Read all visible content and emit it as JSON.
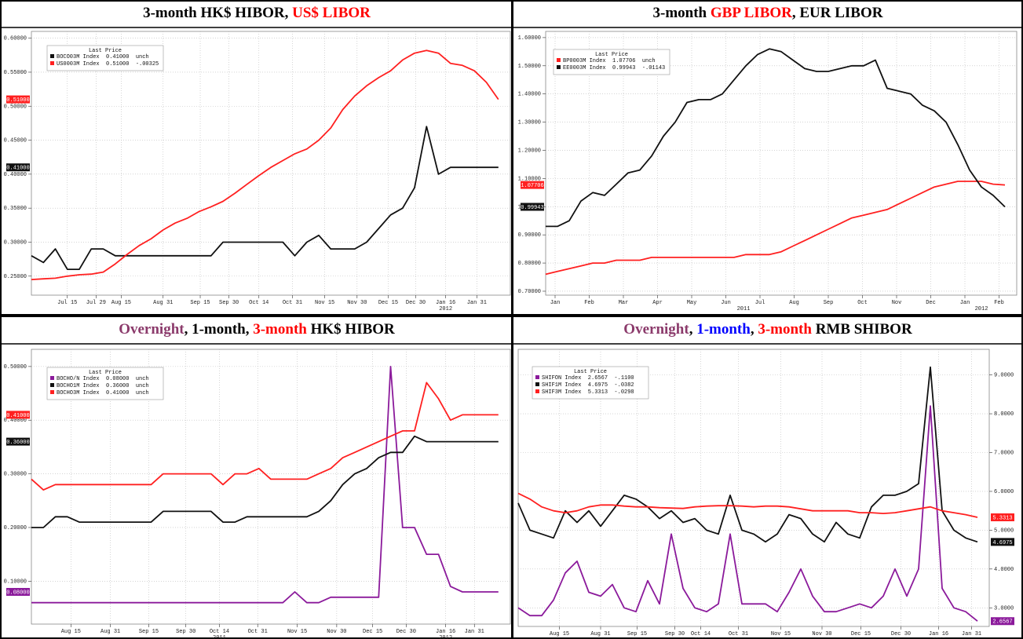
{
  "chart_data": [
    {
      "type": "line",
      "title": [
        {
          "text": "3-month HK$ HIBOR, ",
          "color": "#000000"
        },
        {
          "text": "US$ LIBOR",
          "color": "#ff0000"
        }
      ],
      "legend_title": "Last Price",
      "xlim": [
        0,
        40
      ],
      "ylim": [
        0.222,
        0.61
      ],
      "y_axis_side": "left",
      "grid": true,
      "xticks": [
        {
          "value": 3.0,
          "label": "Jul 15"
        },
        {
          "value": 5.4,
          "label": "Jul 29"
        },
        {
          "value": 7.5,
          "label": "Aug 15"
        },
        {
          "value": 11,
          "label": "Aug 31"
        },
        {
          "value": 14.1,
          "label": "Sep 15"
        },
        {
          "value": 16.5,
          "label": "Sep 30"
        },
        {
          "value": 19,
          "label": "Oct 14"
        },
        {
          "value": 21.8,
          "label": "Oct 31"
        },
        {
          "value": 24.5,
          "label": "Nov 15"
        },
        {
          "value": 27.2,
          "label": "Nov 30"
        },
        {
          "value": 29.8,
          "label": "Dec 15"
        },
        {
          "value": 32.1,
          "label": "Dec 30"
        },
        {
          "value": 34.6,
          "label": "Jan 16"
        },
        {
          "value": 37.2,
          "label": "Jan 31"
        }
      ],
      "year_ticks": [
        {
          "value": 34.6,
          "label": "2012"
        }
      ],
      "yticks": [
        {
          "value": 0.25,
          "label": "0.25000"
        },
        {
          "value": 0.3,
          "label": "0.30000"
        },
        {
          "value": 0.35,
          "label": "0.35000"
        },
        {
          "value": 0.4,
          "label": "0.40000"
        },
        {
          "value": 0.45,
          "label": "0.45000"
        },
        {
          "value": 0.5,
          "label": "0.50000"
        },
        {
          "value": 0.55,
          "label": "0.55000"
        },
        {
          "value": 0.6,
          "label": "0.60000"
        }
      ],
      "series": [
        {
          "name": "BOCO03M Index  0.41000  unch",
          "color": "#111111",
          "last_label": "0.41000",
          "values": [
            0.28,
            0.27,
            0.29,
            0.26,
            0.26,
            0.29,
            0.29,
            0.28,
            0.28,
            0.28,
            0.28,
            0.28,
            0.28,
            0.28,
            0.28,
            0.28,
            0.3,
            0.3,
            0.3,
            0.3,
            0.3,
            0.3,
            0.28,
            0.3,
            0.31,
            0.29,
            0.29,
            0.29,
            0.3,
            0.32,
            0.34,
            0.35,
            0.38,
            0.47,
            0.4,
            0.41,
            0.41,
            0.41,
            0.41,
            0.41
          ]
        },
        {
          "name": "US0003M Index  0.51000  -.00325",
          "color": "#ff2020",
          "last_label": "0.51000",
          "values": [
            0.245,
            0.246,
            0.247,
            0.25,
            0.252,
            0.253,
            0.256,
            0.268,
            0.282,
            0.295,
            0.305,
            0.318,
            0.328,
            0.335,
            0.345,
            0.352,
            0.36,
            0.372,
            0.385,
            0.398,
            0.41,
            0.42,
            0.43,
            0.437,
            0.45,
            0.468,
            0.495,
            0.515,
            0.53,
            0.542,
            0.552,
            0.568,
            0.578,
            0.582,
            0.578,
            0.563,
            0.56,
            0.552,
            0.535,
            0.51
          ]
        }
      ]
    },
    {
      "type": "line",
      "title": [
        {
          "text": "3-month ",
          "color": "#000000"
        },
        {
          "text": "GBP LIBOR",
          "color": "#ff0000"
        },
        {
          "text": ", EUR LIBOR",
          "color": "#000000"
        }
      ],
      "legend_title": "Last Price",
      "xlim": [
        0,
        40
      ],
      "ylim": [
        0.686,
        1.622
      ],
      "y_axis_side": "left",
      "grid": true,
      "xticks": [
        {
          "value": 0.8,
          "label": "Jan"
        },
        {
          "value": 3.7,
          "label": "Feb"
        },
        {
          "value": 6.6,
          "label": "Mar"
        },
        {
          "value": 9.5,
          "label": "Apr"
        },
        {
          "value": 12.4,
          "label": "May"
        },
        {
          "value": 15.3,
          "label": "Jun"
        },
        {
          "value": 18.2,
          "label": "Jul"
        },
        {
          "value": 21.1,
          "label": "Aug"
        },
        {
          "value": 24,
          "label": "Sep"
        },
        {
          "value": 26.9,
          "label": "Oct"
        },
        {
          "value": 29.8,
          "label": "Nov"
        },
        {
          "value": 32.7,
          "label": "Dec"
        },
        {
          "value": 35.6,
          "label": "Jan"
        },
        {
          "value": 38.5,
          "label": "Feb"
        }
      ],
      "year_ticks": [
        {
          "value": 16.8,
          "label": "2011"
        },
        {
          "value": 37,
          "label": "2012"
        }
      ],
      "yticks": [
        {
          "value": 0.7,
          "label": "0.70000"
        },
        {
          "value": 0.8,
          "label": "0.80000"
        },
        {
          "value": 0.9,
          "label": "0.90000"
        },
        {
          "value": 1.0,
          "label": "1.00000"
        },
        {
          "value": 1.1,
          "label": "1.10000"
        },
        {
          "value": 1.2,
          "label": "1.20000"
        },
        {
          "value": 1.3,
          "label": "1.30000"
        },
        {
          "value": 1.4,
          "label": "1.40000"
        },
        {
          "value": 1.5,
          "label": "1.50000"
        },
        {
          "value": 1.6,
          "label": "1.60000"
        }
      ],
      "series": [
        {
          "name": "BP0003M Index  1.07706  unch",
          "color": "#ff2020",
          "last_label": "1.07706",
          "values": [
            0.76,
            0.77,
            0.78,
            0.79,
            0.8,
            0.8,
            0.81,
            0.81,
            0.81,
            0.82,
            0.82,
            0.82,
            0.82,
            0.82,
            0.82,
            0.82,
            0.82,
            0.83,
            0.83,
            0.83,
            0.84,
            0.86,
            0.88,
            0.9,
            0.92,
            0.94,
            0.96,
            0.97,
            0.98,
            0.99,
            1.01,
            1.03,
            1.05,
            1.07,
            1.08,
            1.09,
            1.09,
            1.09,
            1.08,
            1.07706
          ]
        },
        {
          "name": "EE0003M Index  0.99943  -.01143",
          "color": "#111111",
          "last_label": "0.99943",
          "values": [
            0.93,
            0.93,
            0.95,
            1.02,
            1.05,
            1.04,
            1.08,
            1.12,
            1.13,
            1.18,
            1.25,
            1.3,
            1.37,
            1.38,
            1.38,
            1.4,
            1.45,
            1.5,
            1.54,
            1.56,
            1.55,
            1.52,
            1.49,
            1.48,
            1.48,
            1.49,
            1.5,
            1.5,
            1.52,
            1.42,
            1.41,
            1.4,
            1.36,
            1.34,
            1.3,
            1.22,
            1.13,
            1.07,
            1.04,
            0.99943
          ]
        }
      ]
    },
    {
      "type": "line",
      "title": [
        {
          "text": "Overnight",
          "color": "#8b3a6b"
        },
        {
          "text": ", 1-month, ",
          "color": "#000000"
        },
        {
          "text": "3-month",
          "color": "#ff0000"
        },
        {
          "text": " HK$ HIBOR",
          "color": "#000000"
        }
      ],
      "legend_title": "Last Price",
      "xlim": [
        0,
        40
      ],
      "ylim": [
        0.02,
        0.532
      ],
      "y_axis_side": "left",
      "grid": true,
      "xticks": [
        {
          "value": 3.3,
          "label": "Aug 15"
        },
        {
          "value": 6.6,
          "label": "Aug 31"
        },
        {
          "value": 9.8,
          "label": "Sep 15"
        },
        {
          "value": 12.9,
          "label": "Sep 30"
        },
        {
          "value": 15.7,
          "label": "Oct 14"
        },
        {
          "value": 18.9,
          "label": "Oct 31"
        },
        {
          "value": 22.2,
          "label": "Nov 15"
        },
        {
          "value": 25.5,
          "label": "Nov 30"
        },
        {
          "value": 28.5,
          "label": "Dec 15"
        },
        {
          "value": 31.3,
          "label": "Dec 30"
        },
        {
          "value": 34.6,
          "label": "Jan 16"
        },
        {
          "value": 37,
          "label": "Jan 31"
        }
      ],
      "year_ticks": [
        {
          "value": 15.7,
          "label": "2011"
        },
        {
          "value": 34.6,
          "label": "2012"
        }
      ],
      "yticks": [
        {
          "value": 0.1,
          "label": "0.10000"
        },
        {
          "value": 0.2,
          "label": "0.20000"
        },
        {
          "value": 0.3,
          "label": "0.30000"
        },
        {
          "value": 0.4,
          "label": "0.40000"
        },
        {
          "value": 0.5,
          "label": "0.50000"
        }
      ],
      "series": [
        {
          "name": "BOCHO/N Index  0.08000  unch",
          "color": "#8b1a9b",
          "last_label": "0.08000",
          "values": [
            0.06,
            0.06,
            0.06,
            0.06,
            0.06,
            0.06,
            0.06,
            0.06,
            0.06,
            0.06,
            0.06,
            0.06,
            0.06,
            0.06,
            0.06,
            0.06,
            0.06,
            0.06,
            0.06,
            0.06,
            0.06,
            0.06,
            0.08,
            0.06,
            0.06,
            0.07,
            0.07,
            0.07,
            0.07,
            0.07,
            0.5,
            0.2,
            0.2,
            0.15,
            0.15,
            0.09,
            0.08,
            0.08,
            0.08,
            0.08
          ]
        },
        {
          "name": "BOCHO1M Index  0.36000  unch",
          "color": "#111111",
          "last_label": "0.36000",
          "values": [
            0.2,
            0.2,
            0.22,
            0.22,
            0.21,
            0.21,
            0.21,
            0.21,
            0.21,
            0.21,
            0.21,
            0.23,
            0.23,
            0.23,
            0.23,
            0.23,
            0.21,
            0.21,
            0.22,
            0.22,
            0.22,
            0.22,
            0.22,
            0.22,
            0.23,
            0.25,
            0.28,
            0.3,
            0.31,
            0.33,
            0.34,
            0.34,
            0.37,
            0.36,
            0.36,
            0.36,
            0.36,
            0.36,
            0.36,
            0.36
          ]
        },
        {
          "name": "BOCHO3M Index  0.41000  unch",
          "color": "#ff2020",
          "last_label": "0.41000",
          "values": [
            0.29,
            0.27,
            0.28,
            0.28,
            0.28,
            0.28,
            0.28,
            0.28,
            0.28,
            0.28,
            0.28,
            0.3,
            0.3,
            0.3,
            0.3,
            0.3,
            0.28,
            0.3,
            0.3,
            0.31,
            0.29,
            0.29,
            0.29,
            0.29,
            0.3,
            0.31,
            0.33,
            0.34,
            0.35,
            0.36,
            0.37,
            0.38,
            0.38,
            0.47,
            0.44,
            0.4,
            0.41,
            0.41,
            0.41,
            0.41
          ]
        }
      ]
    },
    {
      "type": "line",
      "title": [
        {
          "text": "Overnight",
          "color": "#8b3a6b"
        },
        {
          "text": ", ",
          "color": "#000000"
        },
        {
          "text": "1-month",
          "color": "#0000ff"
        },
        {
          "text": ", ",
          "color": "#000000"
        },
        {
          "text": "3-month",
          "color": "#ff0000"
        },
        {
          "text": " RMB SHIBOR",
          "color": "#000000"
        }
      ],
      "legend_title": "Last Price",
      "xlim": [
        0,
        40
      ],
      "ylim": [
        2.52,
        9.66
      ],
      "y_axis_side": "right",
      "grid": true,
      "xticks": [
        {
          "value": 3.5,
          "label": "Aug 15"
        },
        {
          "value": 7,
          "label": "Aug 31"
        },
        {
          "value": 10.1,
          "label": "Sep 15"
        },
        {
          "value": 13.3,
          "label": "Sep 30"
        },
        {
          "value": 15.5,
          "label": "Oct 14"
        },
        {
          "value": 18.7,
          "label": "Oct 31"
        },
        {
          "value": 22.3,
          "label": "Nov 15"
        },
        {
          "value": 25.8,
          "label": "Nov 30"
        },
        {
          "value": 29.1,
          "label": "Dec 15"
        },
        {
          "value": 32.5,
          "label": "Dec 30"
        },
        {
          "value": 35.7,
          "label": "Jan 16"
        },
        {
          "value": 38.5,
          "label": "Jan 31"
        }
      ],
      "year_ticks": [
        {
          "value": 15.5,
          "label": "2011"
        },
        {
          "value": 35.7,
          "label": "2012"
        }
      ],
      "yticks": [
        {
          "value": 3,
          "label": "3.0000"
        },
        {
          "value": 4,
          "label": "4.0000"
        },
        {
          "value": 5,
          "label": "5.0000"
        },
        {
          "value": 6,
          "label": "6.0000"
        },
        {
          "value": 7,
          "label": "7.0000"
        },
        {
          "value": 8,
          "label": "8.0000"
        },
        {
          "value": 9,
          "label": "9.0000"
        }
      ],
      "series": [
        {
          "name": "SHIFON Index  2.6567  -.1100",
          "color": "#8b1a9b",
          "last_label": "2.6567",
          "values": [
            3.0,
            2.8,
            2.8,
            3.2,
            3.9,
            4.2,
            3.4,
            3.3,
            3.6,
            3.0,
            2.9,
            3.7,
            3.1,
            4.9,
            3.5,
            3.0,
            2.9,
            3.1,
            4.9,
            3.1,
            3.1,
            3.1,
            2.9,
            3.4,
            4.0,
            3.3,
            2.9,
            2.9,
            3.0,
            3.1,
            3.0,
            3.3,
            4.0,
            3.3,
            4.0,
            8.2,
            3.5,
            3.0,
            2.9,
            2.6567
          ]
        },
        {
          "name": "SHIF1M Index  4.6975  -.0382",
          "color": "#111111",
          "last_label": "4.6975",
          "values": [
            5.7,
            5.0,
            4.9,
            4.8,
            5.5,
            5.2,
            5.5,
            5.1,
            5.5,
            5.9,
            5.8,
            5.6,
            5.3,
            5.5,
            5.2,
            5.3,
            5.0,
            4.9,
            5.9,
            5.0,
            4.9,
            4.7,
            4.9,
            5.4,
            5.3,
            4.9,
            4.7,
            5.2,
            4.9,
            4.8,
            5.6,
            5.9,
            5.9,
            6.0,
            6.2,
            9.2,
            5.5,
            5.0,
            4.8,
            4.6975
          ]
        },
        {
          "name": "SHIF3M Index  5.3313  -.0298",
          "color": "#ff2020",
          "last_label": "5.3313",
          "values": [
            5.95,
            5.8,
            5.6,
            5.5,
            5.45,
            5.5,
            5.6,
            5.65,
            5.65,
            5.62,
            5.6,
            5.6,
            5.58,
            5.57,
            5.56,
            5.6,
            5.62,
            5.63,
            5.63,
            5.62,
            5.6,
            5.62,
            5.62,
            5.6,
            5.55,
            5.5,
            5.5,
            5.5,
            5.5,
            5.45,
            5.45,
            5.43,
            5.45,
            5.5,
            5.55,
            5.6,
            5.5,
            5.45,
            5.4,
            5.3313
          ]
        }
      ]
    }
  ]
}
